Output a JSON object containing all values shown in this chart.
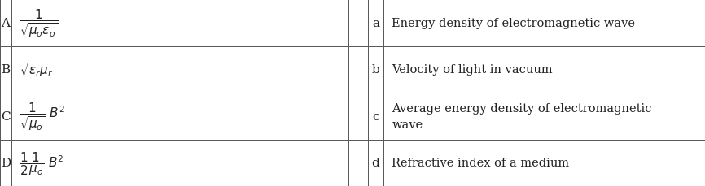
{
  "rows": [
    {
      "left_label": "A",
      "formula": "$\\dfrac{1}{\\sqrt{\\mu_o\\varepsilon_o}}$",
      "right_label": "a",
      "right_text": "Energy density of electromagnetic wave"
    },
    {
      "left_label": "B",
      "formula": "$\\sqrt{\\varepsilon_r\\mu_r}$",
      "right_label": "b",
      "right_text": "Velocity of light in vacuum"
    },
    {
      "left_label": "C",
      "formula": "$\\dfrac{1}{\\sqrt{\\mu_o}}\\ B^2$",
      "right_label": "c",
      "right_text": "Average energy density of electromagnetic\nwave"
    },
    {
      "left_label": "D",
      "formula": "$\\dfrac{1}{2}\\dfrac{1}{\\mu_o}\\ B^2$",
      "right_label": "d",
      "right_text": "Refractive index of a medium"
    }
  ],
  "bg_color": "#ffffff",
  "line_color": "#555555",
  "text_color": "#222222",
  "figsize": [
    8.66,
    2.3
  ],
  "dpi": 100,
  "col_bounds": [
    0.0,
    0.016,
    0.494,
    0.522,
    0.544,
    1.0
  ],
  "row_tops": [
    1.0,
    0.75,
    0.5,
    0.25,
    0.0
  ],
  "label_fontsize": 11,
  "formula_fontsize": 11,
  "desc_fontsize": 10.5
}
